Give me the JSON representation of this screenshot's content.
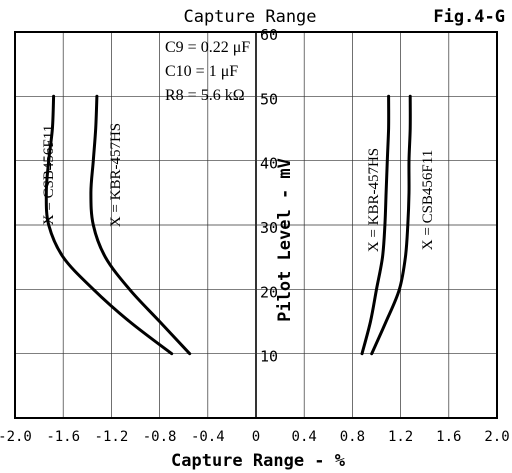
{
  "chart_data": {
    "type": "line",
    "title": "Capture Range",
    "figure_label": "Fig.4-G",
    "xlabel": "Capture Range - %",
    "ylabel": "Pilot Level - mV",
    "xlim": [
      -2.0,
      2.0
    ],
    "ylim": [
      0,
      60
    ],
    "grid": true,
    "x_ticks": [
      "-2.0",
      "-1.6",
      "-1.2",
      "-0.8",
      "-0.4",
      "0",
      "0.4",
      "0.8",
      "1.2",
      "1.6",
      "2.0"
    ],
    "y_ticks": [
      "10",
      "20",
      "30",
      "40",
      "50",
      "60"
    ],
    "annotation": [
      "C9 = 0.22 μF",
      "C10 = 1 μF",
      "R8 = 5.6 kΩ"
    ],
    "series": [
      {
        "name": "X = CSB456F11",
        "x": [
          -1.68,
          -1.69,
          -1.72,
          -1.74,
          -1.72,
          -1.6,
          -1.35,
          -1.05,
          -0.7
        ],
        "y": [
          50,
          45,
          40,
          35,
          30,
          25,
          20,
          15,
          10
        ]
      },
      {
        "name": "X = KBR-457HS",
        "x": [
          -1.32,
          -1.33,
          -1.35,
          -1.37,
          -1.35,
          -1.25,
          -1.05,
          -0.8,
          -0.55
        ],
        "y": [
          50,
          45,
          40,
          35,
          30,
          25,
          20,
          15,
          10
        ]
      },
      {
        "name": "X = KBR-457HS",
        "x": [
          1.1,
          1.1,
          1.09,
          1.08,
          1.07,
          1.05,
          1.0,
          0.95,
          0.88
        ],
        "y": [
          50,
          45,
          40,
          35,
          30,
          25,
          20,
          15,
          10
        ]
      },
      {
        "name": "X = CSB456F11",
        "x": [
          1.28,
          1.28,
          1.27,
          1.27,
          1.26,
          1.24,
          1.19,
          1.08,
          0.96
        ],
        "y": [
          50,
          45,
          40,
          35,
          30,
          25,
          20,
          15,
          10
        ]
      }
    ]
  }
}
